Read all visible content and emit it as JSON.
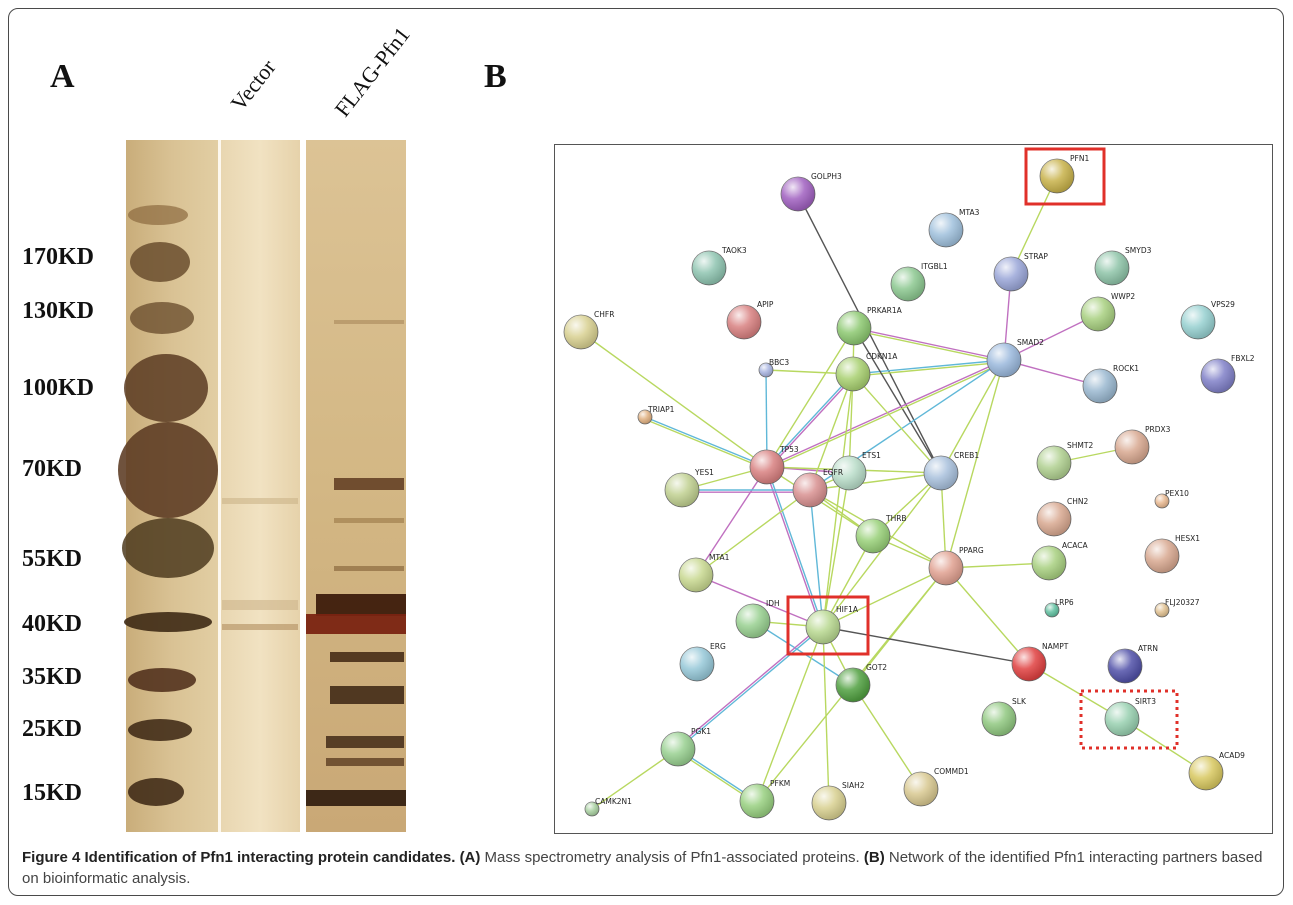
{
  "panel_a": {
    "letter": "A",
    "lanes": [
      "Vector",
      "FLAG-Pfn1"
    ],
    "markers": [
      "170KD",
      "130KD",
      "100KD",
      "70KD",
      "55KD",
      "40KD",
      "35KD",
      "25KD",
      "15KD"
    ]
  },
  "panel_b": {
    "letter": "B",
    "nodes": [
      "PFN1",
      "GOLPH3",
      "MTA3",
      "STRAP",
      "SMYD3",
      "TAOK3",
      "ITGBL1",
      "WWP2",
      "VPS29",
      "CHFR",
      "APIP",
      "PRKAR1A",
      "SMAD2",
      "FBXL2",
      "BBC3",
      "CDKN1A",
      "ROCK1",
      "TRIAP1",
      "TP53",
      "ETS1",
      "CREB1",
      "SHMT2",
      "PRDX3",
      "YES1",
      "EGFR",
      "THRB",
      "CHN2",
      "PEX10",
      "PPARG",
      "ACACA",
      "HESX1",
      "MTA1",
      "IDH",
      "HIF1A",
      "LRP6",
      "FLJ20327",
      "ERG",
      "NAMPT",
      "ATRN",
      "GOT2",
      "SLK",
      "SIRT3",
      "PGK1",
      "COMMD1",
      "ACAD9",
      "PFKM",
      "SIAH2",
      "CAMK2N1"
    ]
  },
  "caption": {
    "title": "Figure 4 Identification of Pfn1 interacting protein candidates.",
    "tag_a": "(A)",
    "text_a": " Mass spectrometry analysis of Pfn1-associated proteins. ",
    "tag_b": "(B)",
    "text_b": " Network of the identified Pfn1 interacting partners based on bioinformatic analysis."
  }
}
